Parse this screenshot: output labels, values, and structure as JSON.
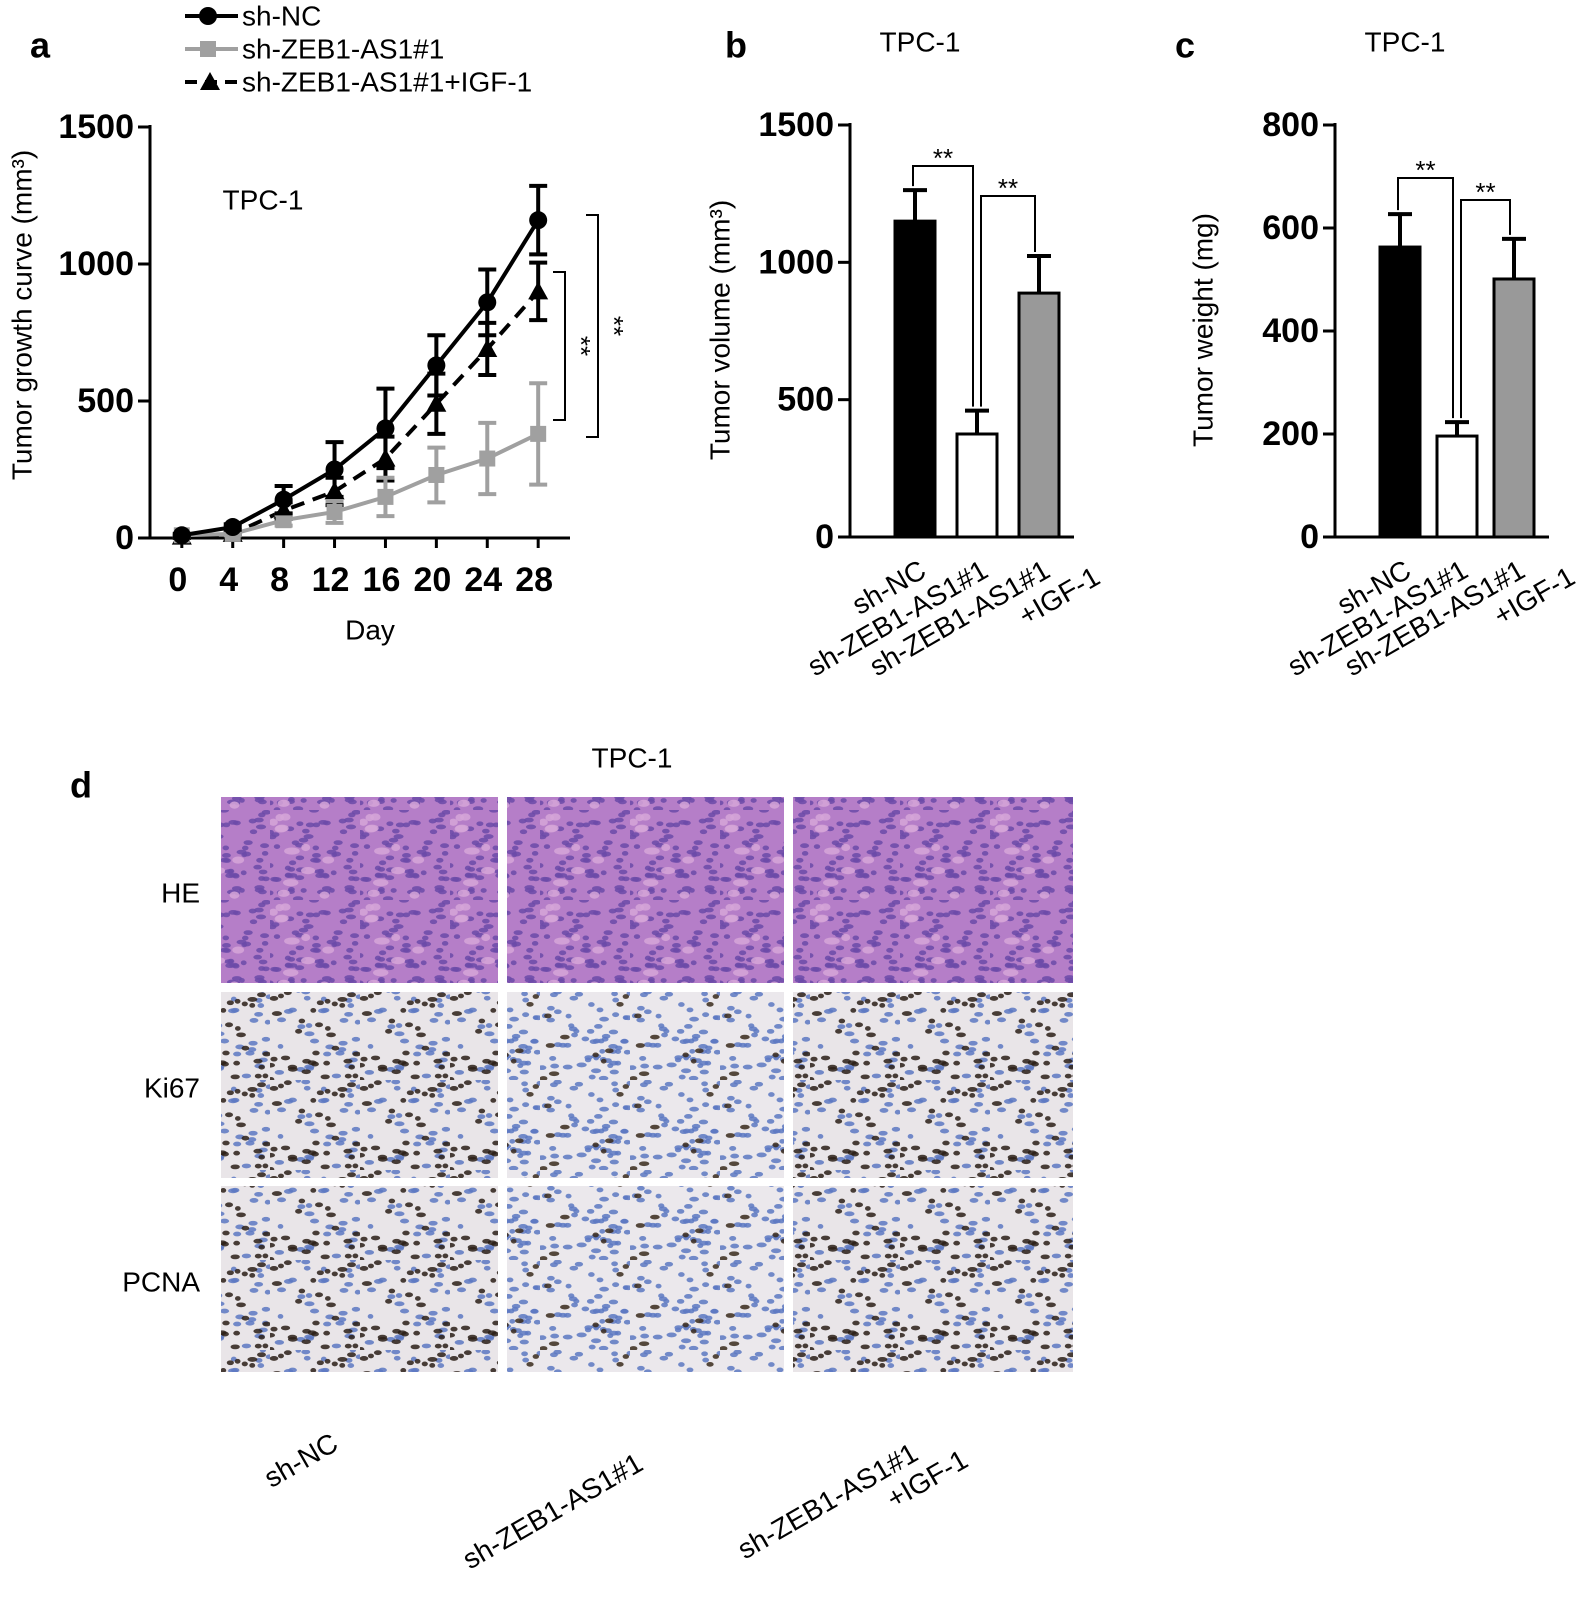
{
  "panel_labels": [
    "a",
    "b",
    "c",
    "d"
  ],
  "chart_data": [
    {
      "type": "line",
      "title": "TPC-1",
      "x_label": "Day",
      "y_label": "Tumor growth curve (mm³)",
      "x": [
        0,
        4,
        8,
        12,
        16,
        20,
        24,
        28
      ],
      "xlim": [
        -2.5,
        30.5
      ],
      "xticks": [
        0,
        4,
        8,
        12,
        16,
        20,
        24,
        28
      ],
      "ylim": [
        0,
        1500
      ],
      "yticks": [
        0,
        500,
        1000,
        1500
      ],
      "legend": "top-left",
      "series": [
        {
          "name": "sh-NC",
          "color": "#000000",
          "marker": "circle",
          "line_style": "solid",
          "values": [
            10,
            40,
            140,
            250,
            400,
            630,
            860,
            1160
          ],
          "errors": [
            5,
            10,
            50,
            100,
            145,
            110,
            120,
            125
          ]
        },
        {
          "name": "sh-ZEB1-AS1#1",
          "color": "#a0a0a0",
          "marker": "square",
          "line_style": "solid",
          "values": [
            10,
            15,
            65,
            95,
            150,
            230,
            290,
            380
          ],
          "errors": [
            5,
            5,
            20,
            40,
            70,
            100,
            130,
            185
          ]
        },
        {
          "name": "sh-ZEB1-AS1#1+IGF-1",
          "color": "#000000",
          "marker": "triangle",
          "line_style": "dashed",
          "values": [
            5,
            15,
            100,
            170,
            290,
            490,
            690,
            900
          ],
          "errors": [
            5,
            5,
            30,
            50,
            80,
            110,
            95,
            105
          ]
        }
      ],
      "annotations": [
        "**",
        "**"
      ]
    },
    {
      "type": "bar",
      "title": "TPC-1",
      "y_label": "Tumor volume (mm³)",
      "categories": [
        "sh-NC",
        "sh-ZEB1-AS1#1",
        "sh-ZEB1-AS1#1\n+IGF-1"
      ],
      "values": [
        1150,
        375,
        888
      ],
      "errors": [
        113,
        85,
        135
      ],
      "colors": [
        "#000000",
        "#ffffff",
        "#999999"
      ],
      "ylim": [
        0,
        1500
      ],
      "yticks": [
        0,
        500,
        1000,
        1500
      ],
      "annotations": [
        "**",
        "**"
      ]
    },
    {
      "type": "bar",
      "title": "TPC-1",
      "y_label": "Tumor weight (mg)",
      "categories": [
        "sh-NC",
        "sh-ZEB1-AS1#1",
        "sh-ZEB1-AS1#1\n+IGF-1"
      ],
      "values": [
        563,
        196,
        501
      ],
      "errors": [
        64,
        27,
        78
      ],
      "colors": [
        "#000000",
        "#ffffff",
        "#999999"
      ],
      "ylim": [
        0,
        800
      ],
      "yticks": [
        0,
        200,
        400,
        600,
        800
      ],
      "annotations": [
        "**",
        "**"
      ]
    }
  ],
  "histology": {
    "title": "TPC-1",
    "rows": [
      "HE",
      "Ki67",
      "PCNA"
    ],
    "columns": [
      "sh-NC",
      "sh-ZEB1-AS1#1",
      "sh-ZEB1-AS1#1\n+IGF-1"
    ]
  }
}
